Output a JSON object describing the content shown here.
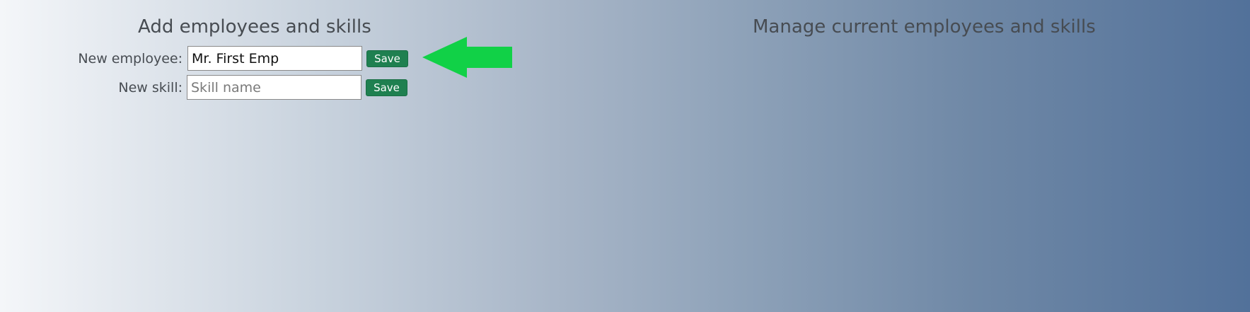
{
  "add_section": {
    "title": "Add employees and skills",
    "employee": {
      "label": "New employee:",
      "value": "Mr. First Emp",
      "save_label": "Save"
    },
    "skill": {
      "label": "New skill:",
      "placeholder": "Skill name",
      "value": "",
      "save_label": "Save"
    }
  },
  "manage_section": {
    "title": "Manage current employees and skills"
  },
  "annotation": {
    "arrow_icon": "arrow-left-icon",
    "arrow_color": "#11d147"
  },
  "colors": {
    "save_button_bg": "#1f8050",
    "gradient_start": "#f4f6f9",
    "gradient_end": "#52719a"
  }
}
